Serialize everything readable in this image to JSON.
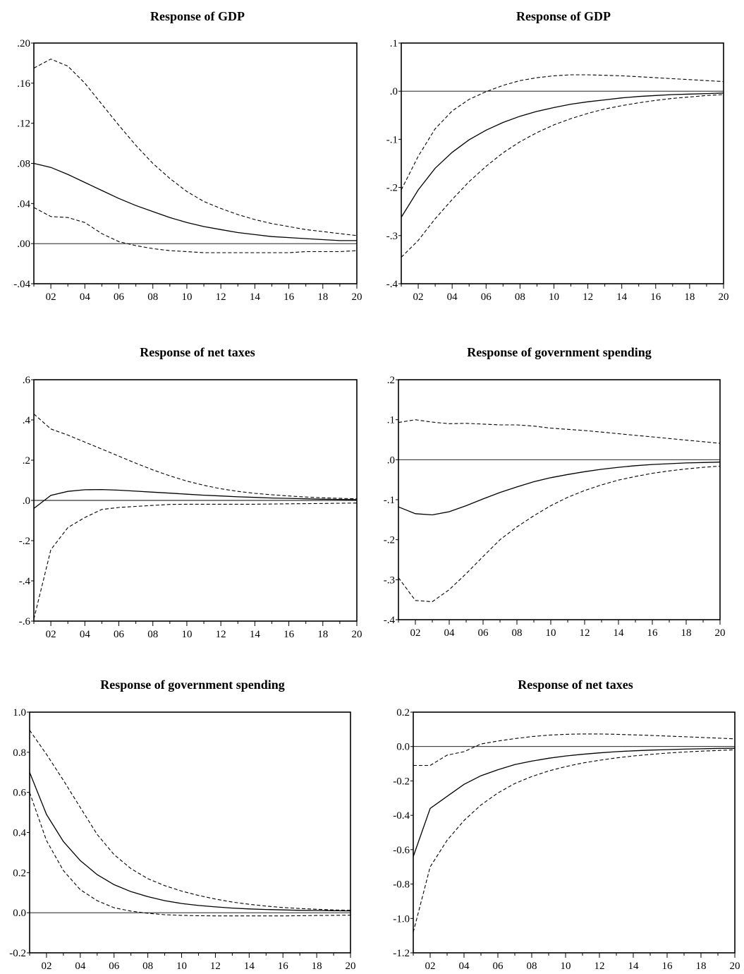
{
  "chart_data": [
    {
      "type": "line",
      "title": "Response of GDP",
      "x": [
        1,
        2,
        3,
        4,
        5,
        6,
        7,
        8,
        9,
        10,
        11,
        12,
        13,
        14,
        15,
        16,
        17,
        18,
        19,
        20
      ],
      "x_tick_labels": [
        "02",
        "04",
        "06",
        "08",
        "10",
        "12",
        "14",
        "16",
        "18",
        "20"
      ],
      "y_tick_labels": [
        ".20",
        ".16",
        ".12",
        ".08",
        ".04",
        ".00",
        "-.04"
      ],
      "ylim": [
        -0.04,
        0.2
      ],
      "grid": false,
      "series": [
        {
          "style": "solid",
          "values": [
            0.08,
            0.076,
            0.069,
            0.061,
            0.053,
            0.045,
            0.038,
            0.032,
            0.026,
            0.021,
            0.017,
            0.014,
            0.011,
            0.009,
            0.007,
            0.006,
            0.005,
            0.004,
            0.003,
            0.003
          ]
        },
        {
          "style": "dashed",
          "values": [
            0.175,
            0.184,
            0.177,
            0.16,
            0.139,
            0.118,
            0.098,
            0.08,
            0.065,
            0.052,
            0.042,
            0.035,
            0.029,
            0.024,
            0.02,
            0.017,
            0.014,
            0.012,
            0.01,
            0.008
          ]
        },
        {
          "style": "dashed",
          "values": [
            0.036,
            0.027,
            0.026,
            0.021,
            0.01,
            0.002,
            -0.002,
            -0.005,
            -0.007,
            -0.008,
            -0.009,
            -0.009,
            -0.009,
            -0.009,
            -0.009,
            -0.009,
            -0.008,
            -0.008,
            -0.008,
            -0.007
          ]
        }
      ]
    },
    {
      "type": "line",
      "title": "Response of GDP",
      "x": [
        1,
        2,
        3,
        4,
        5,
        6,
        7,
        8,
        9,
        10,
        11,
        12,
        13,
        14,
        15,
        16,
        17,
        18,
        19,
        20
      ],
      "x_tick_labels": [
        "02",
        "04",
        "06",
        "08",
        "10",
        "12",
        "14",
        "16",
        "18",
        "20"
      ],
      "y_tick_labels": [
        ".1",
        ".0",
        "-.1",
        "-.2",
        "-.3",
        "-.4"
      ],
      "ylim": [
        -0.4,
        0.1
      ],
      "grid": false,
      "series": [
        {
          "style": "solid",
          "values": [
            -0.262,
            -0.205,
            -0.16,
            -0.127,
            -0.101,
            -0.081,
            -0.065,
            -0.052,
            -0.042,
            -0.034,
            -0.027,
            -0.022,
            -0.018,
            -0.014,
            -0.011,
            -0.009,
            -0.007,
            -0.006,
            -0.005,
            -0.004
          ]
        },
        {
          "style": "dashed",
          "values": [
            -0.205,
            -0.135,
            -0.078,
            -0.041,
            -0.017,
            -0.001,
            0.012,
            0.022,
            0.028,
            0.032,
            0.034,
            0.034,
            0.033,
            0.032,
            0.03,
            0.028,
            0.026,
            0.024,
            0.022,
            0.02
          ]
        },
        {
          "style": "dashed",
          "values": [
            -0.345,
            -0.31,
            -0.265,
            -0.225,
            -0.188,
            -0.156,
            -0.128,
            -0.105,
            -0.086,
            -0.07,
            -0.057,
            -0.046,
            -0.037,
            -0.03,
            -0.024,
            -0.019,
            -0.015,
            -0.012,
            -0.009,
            -0.007
          ]
        }
      ]
    },
    {
      "type": "line",
      "title": "Response of net taxes",
      "x": [
        1,
        2,
        3,
        4,
        5,
        6,
        7,
        8,
        9,
        10,
        11,
        12,
        13,
        14,
        15,
        16,
        17,
        18,
        19,
        20
      ],
      "x_tick_labels": [
        "02",
        "04",
        "06",
        "08",
        "10",
        "12",
        "14",
        "16",
        "18",
        "20"
      ],
      "y_tick_labels": [
        ".6",
        ".4",
        ".2",
        ".0",
        "-.2",
        "-.4",
        "-.6"
      ],
      "ylim": [
        -0.6,
        0.6
      ],
      "grid": false,
      "series": [
        {
          "style": "solid",
          "values": [
            -0.04,
            0.025,
            0.045,
            0.053,
            0.054,
            0.051,
            0.046,
            0.041,
            0.036,
            0.031,
            0.026,
            0.022,
            0.018,
            0.015,
            0.012,
            0.01,
            0.008,
            0.006,
            0.005,
            0.004
          ]
        },
        {
          "style": "dashed",
          "values": [
            0.43,
            0.355,
            0.325,
            0.29,
            0.255,
            0.22,
            0.185,
            0.152,
            0.122,
            0.096,
            0.075,
            0.058,
            0.045,
            0.035,
            0.028,
            0.022,
            0.017,
            0.013,
            0.01,
            0.008
          ]
        },
        {
          "style": "dashed",
          "values": [
            -0.59,
            -0.245,
            -0.135,
            -0.085,
            -0.045,
            -0.035,
            -0.03,
            -0.025,
            -0.02,
            -0.019,
            -0.019,
            -0.019,
            -0.019,
            -0.019,
            -0.018,
            -0.017,
            -0.016,
            -0.015,
            -0.014,
            -0.013
          ]
        }
      ]
    },
    {
      "type": "line",
      "title": "Response of government spending",
      "x": [
        1,
        2,
        3,
        4,
        5,
        6,
        7,
        8,
        9,
        10,
        11,
        12,
        13,
        14,
        15,
        16,
        17,
        18,
        19,
        20
      ],
      "x_tick_labels": [
        "02",
        "04",
        "06",
        "08",
        "10",
        "12",
        "14",
        "16",
        "18",
        "20"
      ],
      "y_tick_labels": [
        ".2",
        ".1",
        ".0",
        "-.1",
        "-.2",
        "-.3",
        "-.4"
      ],
      "ylim": [
        -0.4,
        0.2
      ],
      "grid": false,
      "series": [
        {
          "style": "solid",
          "values": [
            -0.118,
            -0.135,
            -0.138,
            -0.13,
            -0.115,
            -0.098,
            -0.082,
            -0.068,
            -0.055,
            -0.045,
            -0.037,
            -0.03,
            -0.024,
            -0.019,
            -0.015,
            -0.012,
            -0.01,
            -0.008,
            -0.007,
            -0.006
          ]
        },
        {
          "style": "dashed",
          "values": [
            0.093,
            0.1,
            0.094,
            0.09,
            0.091,
            0.089,
            0.087,
            0.087,
            0.084,
            0.079,
            0.076,
            0.073,
            0.069,
            0.065,
            0.061,
            0.057,
            0.053,
            0.049,
            0.045,
            0.041
          ]
        },
        {
          "style": "dashed",
          "values": [
            -0.295,
            -0.352,
            -0.355,
            -0.325,
            -0.285,
            -0.242,
            -0.2,
            -0.168,
            -0.14,
            -0.115,
            -0.094,
            -0.077,
            -0.063,
            -0.051,
            -0.042,
            -0.034,
            -0.028,
            -0.023,
            -0.019,
            -0.016
          ]
        }
      ]
    },
    {
      "type": "line",
      "title": "Response of government spending",
      "x": [
        1,
        2,
        3,
        4,
        5,
        6,
        7,
        8,
        9,
        10,
        11,
        12,
        13,
        14,
        15,
        16,
        17,
        18,
        19,
        20
      ],
      "x_tick_labels": [
        "02",
        "04",
        "06",
        "08",
        "10",
        "12",
        "14",
        "16",
        "18",
        "20"
      ],
      "y_tick_labels": [
        "1.0",
        "0.8",
        "0.6",
        "0.4",
        "0.2",
        "0.0",
        "-0.2"
      ],
      "ylim": [
        -0.2,
        1.0
      ],
      "grid": false,
      "series": [
        {
          "style": "solid",
          "values": [
            0.7,
            0.49,
            0.355,
            0.26,
            0.19,
            0.14,
            0.105,
            0.08,
            0.06,
            0.046,
            0.036,
            0.029,
            0.023,
            0.019,
            0.016,
            0.014,
            0.012,
            0.011,
            0.01,
            0.009
          ]
        },
        {
          "style": "dashed",
          "values": [
            0.91,
            0.79,
            0.66,
            0.525,
            0.39,
            0.29,
            0.22,
            0.17,
            0.135,
            0.108,
            0.086,
            0.068,
            0.053,
            0.042,
            0.033,
            0.026,
            0.021,
            0.017,
            0.014,
            0.012
          ]
        },
        {
          "style": "dashed",
          "values": [
            0.6,
            0.36,
            0.21,
            0.115,
            0.06,
            0.025,
            0.008,
            -0.003,
            -0.01,
            -0.013,
            -0.015,
            -0.016,
            -0.016,
            -0.016,
            -0.016,
            -0.016,
            -0.015,
            -0.014,
            -0.013,
            -0.012
          ]
        }
      ]
    },
    {
      "type": "line",
      "title": "Response of net taxes",
      "x": [
        1,
        2,
        3,
        4,
        5,
        6,
        7,
        8,
        9,
        10,
        11,
        12,
        13,
        14,
        15,
        16,
        17,
        18,
        19,
        20
      ],
      "x_tick_labels": [
        "02",
        "04",
        "06",
        "08",
        "10",
        "12",
        "14",
        "16",
        "18",
        "20"
      ],
      "y_tick_labels": [
        "0.2",
        "0.0",
        "-0.2",
        "-0.4",
        "-0.6",
        "-0.8",
        "-1.0",
        "-1.2"
      ],
      "ylim": [
        -1.2,
        0.2
      ],
      "grid": false,
      "series": [
        {
          "style": "solid",
          "values": [
            -0.64,
            -0.36,
            -0.29,
            -0.22,
            -0.17,
            -0.135,
            -0.105,
            -0.085,
            -0.068,
            -0.055,
            -0.045,
            -0.037,
            -0.03,
            -0.025,
            -0.021,
            -0.018,
            -0.015,
            -0.013,
            -0.011,
            -0.01
          ]
        },
        {
          "style": "dashed",
          "values": [
            -0.11,
            -0.11,
            -0.05,
            -0.03,
            0.015,
            0.032,
            0.046,
            0.058,
            0.066,
            0.071,
            0.073,
            0.073,
            0.071,
            0.068,
            0.065,
            0.061,
            0.057,
            0.053,
            0.049,
            0.045
          ]
        },
        {
          "style": "dashed",
          "values": [
            -1.08,
            -0.7,
            -0.545,
            -0.43,
            -0.34,
            -0.27,
            -0.215,
            -0.175,
            -0.142,
            -0.117,
            -0.096,
            -0.08,
            -0.066,
            -0.055,
            -0.046,
            -0.038,
            -0.032,
            -0.027,
            -0.023,
            -0.019
          ]
        }
      ]
    }
  ]
}
